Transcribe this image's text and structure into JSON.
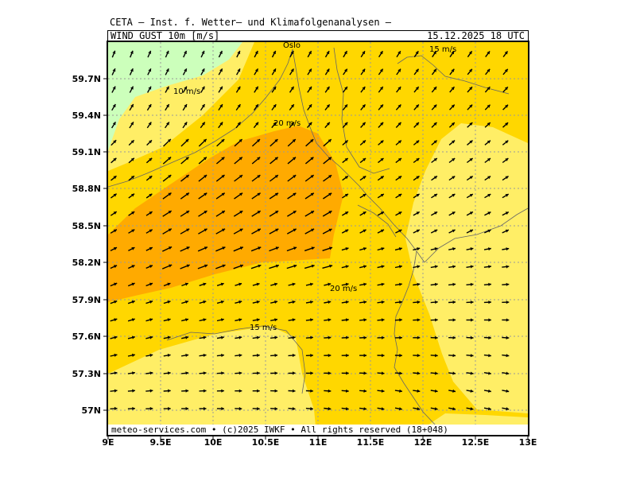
{
  "header": {
    "title": "CETA — Inst. f. Wetter— und Klimafolgenanalysen —",
    "variable": "WIND_GUST_10m_[m/s]",
    "valid_time": "15.12.2025  18 UTC"
  },
  "footer": {
    "copyright": "meteo-services.com • (c)2025 IWKF • All rights reserved (18+048)"
  },
  "axes": {
    "lat_labels": [
      "59.7N",
      "59.4N",
      "59.1N",
      "58.8N",
      "58.5N",
      "58.2N",
      "57.9N",
      "57.6N",
      "57.3N",
      "57N"
    ],
    "lon_labels": [
      "9E",
      "9.5E",
      "10E",
      "10.5E",
      "11E",
      "11.5E",
      "12E",
      "12.5E",
      "13E"
    ]
  },
  "map_labels": {
    "city": "Oslo",
    "contour_10": "10 m/s",
    "contour_15_north": "15 m/s",
    "contour_15_south": "15 m/s",
    "contour_20_north": "20 m/s",
    "contour_20_south": "20 m/s"
  },
  "colors": {
    "below_10": "#ccffbb",
    "10_to_15": "#ffee66",
    "15_to_20": "#ffd700",
    "above_20": "#ffaa00",
    "grid": "#9a9a9a",
    "coast": "#666666"
  }
}
